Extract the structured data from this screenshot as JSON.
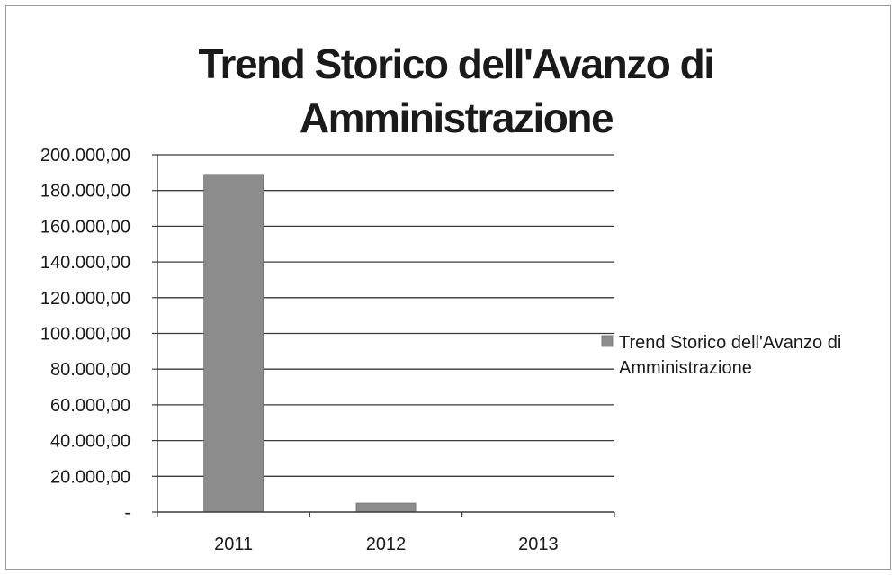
{
  "chart_data": {
    "type": "bar",
    "title": "Trend Storico dell'Avanzo di Amministrazione",
    "title_lines": [
      "Trend Storico dell'Avanzo di",
      "Amministrazione"
    ],
    "categories": [
      "2011",
      "2012",
      "2013"
    ],
    "series": [
      {
        "name": "Trend Storico dell'Avanzo di Amministrazione",
        "legend_lines": [
          "Trend Storico dell'Avanzo di",
          "Amministrazione"
        ],
        "values": [
          189000,
          5000,
          0
        ],
        "color": "#8c8c8c"
      }
    ],
    "xlabel": "",
    "ylabel": "",
    "ylim": [
      0,
      200000
    ],
    "y_ticks": [
      0,
      20000,
      40000,
      60000,
      80000,
      100000,
      120000,
      140000,
      160000,
      180000,
      200000
    ],
    "y_tick_labels": [
      "-",
      "20.000,00",
      "40.000,00",
      "60.000,00",
      "80.000,00",
      "100.000,00",
      "120.000,00",
      "140.000,00",
      "160.000,00",
      "180.000,00",
      "200.000,00"
    ],
    "grid": true,
    "legend_position": "right"
  }
}
